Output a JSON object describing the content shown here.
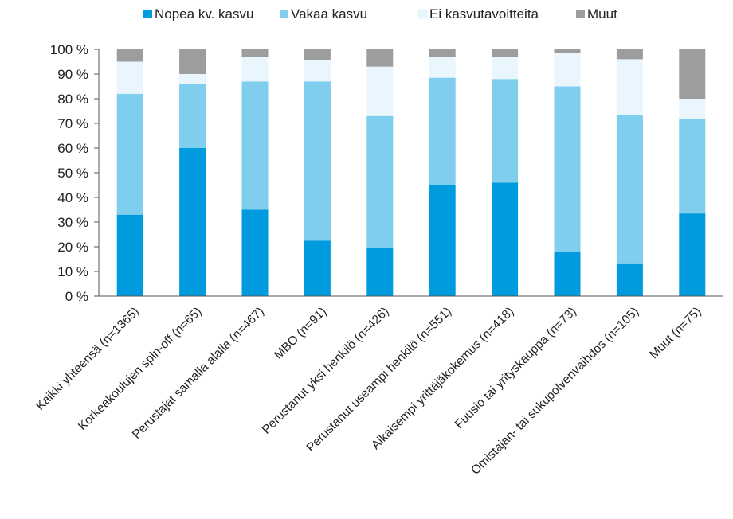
{
  "chart_data": {
    "type": "bar",
    "stacked": true,
    "categories": [
      "Kaikki yhteensä (n=1365)",
      "Korkeakoulujen spin-off (n=65)",
      "Perustajat  samalla alalla (n=467)",
      "MBO (n=91)",
      "Perustanut yksi henkilö  (n=426)",
      "Perustanut useampi henkilö  (n=551)",
      "Aikaisempi yrittäjäkokemus (n=418)",
      "Fuusio tai yrityskauppa (n=73)",
      "Omistajan- tai sukupolvenvaihdos (n=105)",
      "Muut (n=75)"
    ],
    "series": [
      {
        "name": "Nopea kv. kasvu",
        "color": "#009ade",
        "values": [
          33,
          60,
          35,
          22.5,
          19.5,
          45,
          46,
          18,
          13,
          33.5
        ]
      },
      {
        "name": "Vakaa kasvu",
        "color": "#7fceee",
        "values": [
          49,
          26,
          52,
          64.5,
          53.5,
          43.5,
          42,
          67,
          60.5,
          38.5
        ]
      },
      {
        "name": "Ei kasvutavoitteita",
        "color": "#eaf6fd",
        "values": [
          13,
          4,
          10,
          8.5,
          20,
          8.5,
          9,
          13.5,
          22.5,
          8
        ]
      },
      {
        "name": "Muut",
        "color": "#9d9d9d",
        "values": [
          5,
          10,
          3,
          4.5,
          7,
          3,
          3,
          1.5,
          4,
          20
        ]
      }
    ],
    "ylim": [
      0,
      100
    ],
    "yticks": [
      "0 %",
      "10 %",
      "20 %",
      "30 %",
      "40 %",
      "50 %",
      "60 %",
      "70 %",
      "80 %",
      "90 %",
      "100 %"
    ],
    "legend_position": "top",
    "grid": false
  }
}
